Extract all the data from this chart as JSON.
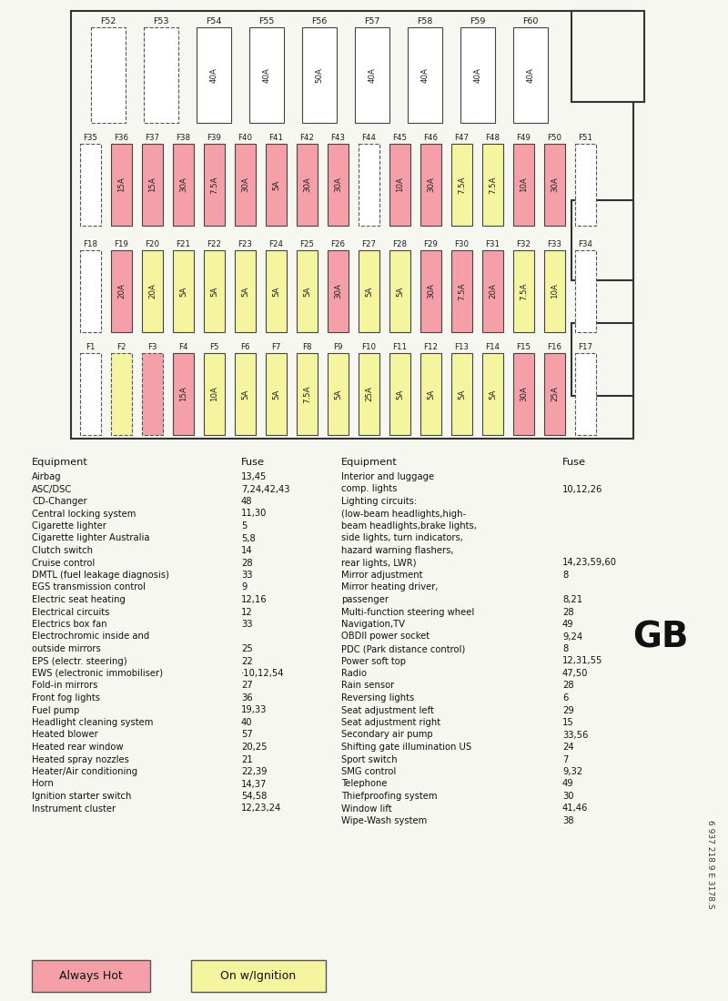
{
  "bg_color": "#f7f7f2",
  "box_border": "#444444",
  "pink": "#f5a0a8",
  "yellow": "#f5f5a0",
  "white": "#ffffff",
  "dashed_color": "#555555",
  "row1_labels": [
    "F52",
    "F53",
    "F54",
    "F55",
    "F56",
    "F57",
    "F58",
    "F59",
    "F60"
  ],
  "row1_values": [
    "",
    "",
    "40A",
    "40A",
    "50A",
    "40A",
    "40A",
    "40A",
    "40A"
  ],
  "row1_dashed": [
    true,
    true,
    false,
    false,
    false,
    false,
    false,
    false,
    false
  ],
  "row1_colors": [
    "white",
    "white",
    "white",
    "white",
    "white",
    "white",
    "white",
    "white",
    "white"
  ],
  "row2_labels": [
    "F35",
    "F36",
    "F37",
    "F38",
    "F39",
    "F40",
    "F41",
    "F42",
    "F43",
    "F44",
    "F45",
    "F46",
    "F47",
    "F48",
    "F49",
    "F50",
    "F51"
  ],
  "row2_values": [
    "",
    "15A",
    "15A",
    "30A",
    "7.5A",
    "30A",
    "5A",
    "30A",
    "30A",
    "",
    "10A",
    "30A",
    "7.5A",
    "7.5A",
    "10A",
    "30A",
    ""
  ],
  "row2_dashed": [
    true,
    false,
    false,
    false,
    false,
    false,
    false,
    false,
    false,
    true,
    false,
    false,
    false,
    false,
    false,
    false,
    true
  ],
  "row2_colors": [
    "white",
    "pink",
    "pink",
    "pink",
    "pink",
    "pink",
    "pink",
    "pink",
    "pink",
    "white",
    "pink",
    "pink",
    "yellow",
    "yellow",
    "pink",
    "pink",
    "white"
  ],
  "row3_labels": [
    "F18",
    "F19",
    "F20",
    "F21",
    "F22",
    "F23",
    "F24",
    "F25",
    "F26",
    "F27",
    "F28",
    "F29",
    "F30",
    "F31",
    "F32",
    "F33",
    "F34"
  ],
  "row3_values": [
    "",
    "20A",
    "20A",
    "5A",
    "5A",
    "5A",
    "5A",
    "5A",
    "30A",
    "5A",
    "5A",
    "30A",
    "7.5A",
    "20A",
    "7.5A",
    "10A",
    ""
  ],
  "row3_dashed": [
    true,
    false,
    false,
    false,
    false,
    false,
    false,
    false,
    false,
    false,
    false,
    false,
    false,
    false,
    false,
    false,
    true
  ],
  "row3_colors": [
    "white",
    "pink",
    "yellow",
    "yellow",
    "yellow",
    "yellow",
    "yellow",
    "yellow",
    "pink",
    "yellow",
    "yellow",
    "pink",
    "pink",
    "pink",
    "yellow",
    "yellow",
    "white"
  ],
  "row4_labels": [
    "F1",
    "F2",
    "F3",
    "F4",
    "F5",
    "F6",
    "F7",
    "F8",
    "F9",
    "F10",
    "F11",
    "F12",
    "F13",
    "F14",
    "F15",
    "F16",
    "F17"
  ],
  "row4_values": [
    "",
    "",
    "",
    "15A",
    "10A",
    "5A",
    "5A",
    "7.5A",
    "5A",
    "25A",
    "5A",
    "5A",
    "5A",
    "5A",
    "30A",
    "25A",
    ""
  ],
  "row4_dashed": [
    true,
    true,
    true,
    false,
    false,
    false,
    false,
    false,
    false,
    false,
    false,
    false,
    false,
    false,
    false,
    false,
    true
  ],
  "row4_colors": [
    "white",
    "yellow",
    "pink",
    "pink",
    "yellow",
    "yellow",
    "yellow",
    "yellow",
    "yellow",
    "yellow",
    "yellow",
    "yellow",
    "yellow",
    "yellow",
    "pink",
    "pink",
    "white"
  ],
  "equip_left": [
    [
      "Airbag",
      "13,45"
    ],
    [
      "ASC/DSC",
      "7,24,42,43"
    ],
    [
      "CD-Changer",
      "48"
    ],
    [
      "Central locking system",
      "11,30"
    ],
    [
      "Cigarette lighter",
      "5"
    ],
    [
      "Cigarette lighter Australia",
      "5,8"
    ],
    [
      "Clutch switch",
      "14"
    ],
    [
      "Cruise control",
      "28"
    ],
    [
      "DMTL (fuel leakage diagnosis)",
      "33"
    ],
    [
      "EGS transmission control",
      "9"
    ],
    [
      "Electric seat heating",
      "12,16"
    ],
    [
      "Electrical circuits",
      "12"
    ],
    [
      "Electrics box fan",
      "33"
    ],
    [
      "Electrochromic inside and",
      ""
    ],
    [
      "outside mirrors",
      "25"
    ],
    [
      "EPS (electr. steering)",
      "22"
    ],
    [
      "EWS (electronic immobiliser)",
      "·10,12,54"
    ],
    [
      "Fold-in mirrors",
      "27"
    ],
    [
      "Front fog lights",
      "36"
    ],
    [
      "Fuel pump",
      "19,33"
    ],
    [
      "Headlight cleaning system",
      "40"
    ],
    [
      "Heated blower",
      "57"
    ],
    [
      "Heated rear window",
      "20,25"
    ],
    [
      "Heated spray nozzles",
      "21"
    ],
    [
      "Heater/Air conditioning",
      "22,39"
    ],
    [
      "Horn",
      "14,37"
    ],
    [
      "Ignition starter switch",
      "54,58"
    ],
    [
      "Instrument cluster",
      "12,23,24"
    ]
  ],
  "equip_right": [
    [
      "Interior and luggage",
      ""
    ],
    [
      "comp. lights",
      "10,12,26"
    ],
    [
      "Lighting circuits:",
      ""
    ],
    [
      "(low-beam headlights,high-",
      ""
    ],
    [
      "beam headlights,brake lights,",
      ""
    ],
    [
      "side lights, turn indicators,",
      ""
    ],
    [
      "hazard warning flashers,",
      ""
    ],
    [
      "rear lights, LWR)",
      "14,23,59,60"
    ],
    [
      "Mirror adjustment",
      "8"
    ],
    [
      "Mirror heating driver,",
      ""
    ],
    [
      "passenger",
      "8,21"
    ],
    [
      "Multi-function steering wheel",
      "28"
    ],
    [
      "Navigation,TV",
      "49"
    ],
    [
      "OBDII power socket",
      "9,24"
    ],
    [
      "PDC (Park distance control)",
      "8"
    ],
    [
      "Power soft top",
      "12,31,55"
    ],
    [
      "Radio",
      "47,50"
    ],
    [
      "Rain sensor",
      "28"
    ],
    [
      "Reversing lights",
      "6"
    ],
    [
      "Seat adjustment left",
      "29"
    ],
    [
      "Seat adjustment right",
      "15"
    ],
    [
      "Secondary air pump",
      "33,56"
    ],
    [
      "Shifting gate illumination US",
      "24"
    ],
    [
      "Sport switch",
      "7"
    ],
    [
      "SMG control",
      "9,32"
    ],
    [
      "Telephone",
      "49"
    ],
    [
      "Thiefproofing system",
      "30"
    ],
    [
      "Window lift",
      "41,46"
    ],
    [
      "Wipe-Wash system",
      "38"
    ]
  ]
}
